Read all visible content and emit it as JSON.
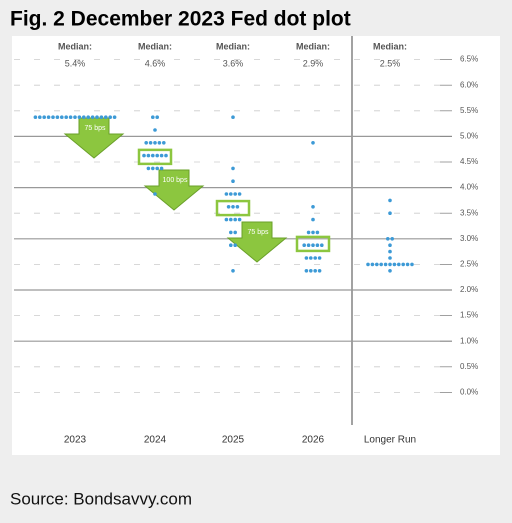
{
  "chart_data": {
    "type": "dot",
    "title": "Fig. 2 December 2023 Fed dot plot",
    "source": "Source: Bondsavvy.com",
    "categories": [
      "2023",
      "2024",
      "2025",
      "2026",
      "Longer Run"
    ],
    "values": [
      [
        5.375,
        5.375,
        5.375,
        5.375,
        5.375,
        5.375,
        5.375,
        5.375,
        5.375,
        5.375,
        5.375,
        5.375,
        5.375,
        5.375,
        5.375,
        5.375,
        5.375,
        5.375,
        5.375
      ],
      [
        5.375,
        5.375,
        5.125,
        4.875,
        4.875,
        4.875,
        4.875,
        4.875,
        4.625,
        4.625,
        4.625,
        4.625,
        4.625,
        4.625,
        4.375,
        4.375,
        4.375,
        4.375,
        3.875
      ],
      [
        5.375,
        4.375,
        4.125,
        3.875,
        3.875,
        3.875,
        3.875,
        3.625,
        3.625,
        3.625,
        3.375,
        3.375,
        3.375,
        3.375,
        3.125,
        3.125,
        2.875,
        2.875,
        2.375
      ],
      [
        4.875,
        3.625,
        3.375,
        3.125,
        3.125,
        3.125,
        2.875,
        2.875,
        2.875,
        2.875,
        2.875,
        2.625,
        2.625,
        2.625,
        2.625,
        2.375,
        2.375,
        2.375,
        2.375
      ],
      [
        3.75,
        3.5,
        3.0,
        3.0,
        2.875,
        2.75,
        2.625,
        2.5,
        2.5,
        2.5,
        2.5,
        2.5,
        2.5,
        2.5,
        2.5,
        2.5,
        2.5,
        2.5,
        2.375
      ]
    ],
    "color": "#3d9ad6",
    "median_title": "Median:",
    "medians": [
      5.4,
      4.6,
      3.6,
      2.9,
      2.5
    ],
    "median_labels": [
      "5.4%",
      "4.6%",
      "3.6%",
      "2.9%",
      "2.5%"
    ],
    "highlight_color": "#8cc63f",
    "arrow_labels": [
      "75 bps",
      "100 bps",
      "75 bps"
    ],
    "ylim": [
      -0.5,
      7.0
    ],
    "yticks": [
      {
        "value": 6.5,
        "label": "6.5%"
      },
      {
        "value": 6.0,
        "label": "6.0%"
      },
      {
        "value": 5.5,
        "label": "5.5%"
      },
      {
        "value": 5.0,
        "label": "5.0%"
      },
      {
        "value": 4.5,
        "label": "4.5%"
      },
      {
        "value": 4.0,
        "label": "4.0%"
      },
      {
        "value": 3.5,
        "label": "3.5%"
      },
      {
        "value": 3.0,
        "label": "3.0%"
      },
      {
        "value": 2.5,
        "label": "2.5%"
      },
      {
        "value": 2.0,
        "label": "2.0%"
      },
      {
        "value": 1.5,
        "label": "1.5%"
      },
      {
        "value": 1.0,
        "label": "1.0%"
      },
      {
        "value": 0.5,
        "label": "0.5%"
      },
      {
        "value": 0.0,
        "label": "0.0%"
      }
    ],
    "grid": true
  }
}
